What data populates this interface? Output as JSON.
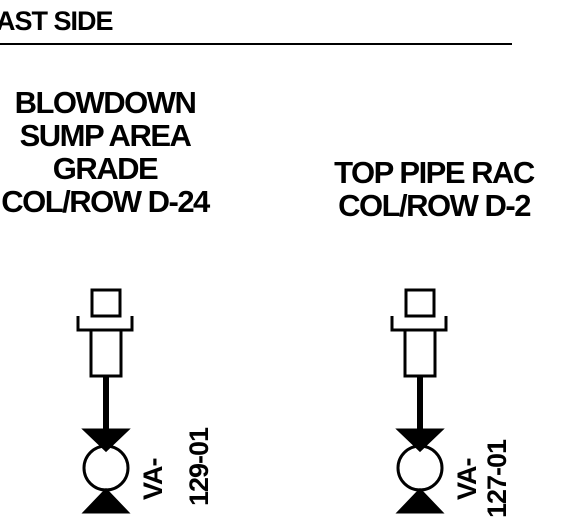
{
  "header": {
    "title": "AST SIDE"
  },
  "locations": [
    {
      "lines": [
        "BLOWDOWN",
        "SUMP AREA",
        "GRADE",
        "COL/ROW D-24"
      ],
      "tag": {
        "prefix": "VA-",
        "number": "129-01"
      }
    },
    {
      "lines": [
        "TOP PIPE RAC",
        "COL/ROW D-2"
      ],
      "tag": {
        "prefix": "VA-",
        "number": "127-01"
      }
    }
  ]
}
